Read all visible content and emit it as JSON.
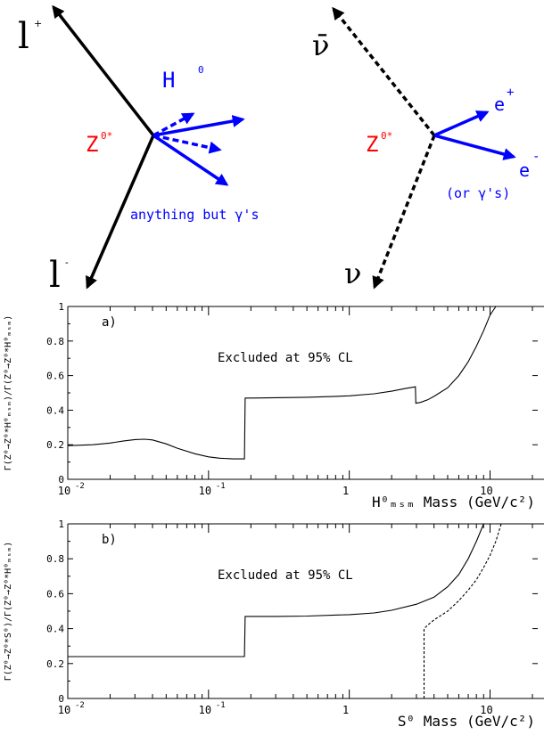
{
  "diagram_left": {
    "lepton_plus": "l",
    "lepton_plus_sup": "+",
    "lepton_minus": "l",
    "lepton_minus_sup": "-",
    "boson": "Z",
    "boson_sup": "0*",
    "higgs": "H",
    "higgs_sup": "0",
    "note": "anything but γ's",
    "color_lepton": "#000000",
    "color_boson": "#ff0000",
    "color_higgs": "#0000ff"
  },
  "diagram_right": {
    "nubar": "ν̄",
    "nu": "ν",
    "boson": "Z",
    "boson_sup": "0*",
    "e_plus": "e",
    "e_plus_sup": "+",
    "e_minus": "e",
    "e_minus_sup": "-",
    "note": "(or γ's)"
  },
  "chart_data": [
    {
      "type": "line",
      "panel_label": "a)",
      "annotation": "Excluded at 95% CL",
      "xscale": "log",
      "xlim": [
        0.01,
        20
      ],
      "ylim": [
        0,
        1
      ],
      "xticks": [
        {
          "v": 0.01,
          "base": "10",
          "exp": "-2"
        },
        {
          "v": 0.1,
          "base": "10",
          "exp": "-1"
        },
        {
          "v": 1,
          "base": "1",
          "exp": ""
        },
        {
          "v": 10,
          "base": "10",
          "exp": ""
        }
      ],
      "yticks": [
        0,
        0.2,
        0.4,
        0.6,
        0.8,
        1
      ],
      "ytick_labels": [
        "0",
        "0.2",
        "0.4",
        "0.6",
        "0.8",
        "1"
      ],
      "xlabel": "H⁰ₘₛₘ Mass (GeV/c²)",
      "ylabel": "Γ(Z⁰→Z⁰*H⁰ₘₛₘ)/Γ(Z⁰→Z⁰*H⁰ₘₛₘ)",
      "series": [
        {
          "style": "solid",
          "x": [
            0.01,
            0.015,
            0.02,
            0.025,
            0.03,
            0.035,
            0.04,
            0.05,
            0.06,
            0.08,
            0.1,
            0.12,
            0.15,
            0.18,
            0.182,
            0.2,
            0.3,
            0.5,
            0.8,
            1,
            1.5,
            2,
            2.5,
            2.95,
            2.97,
            3.2,
            3.6,
            4,
            5,
            6,
            7,
            8,
            9,
            10,
            11
          ],
          "y": [
            0.195,
            0.2,
            0.21,
            0.222,
            0.23,
            0.232,
            0.228,
            0.205,
            0.18,
            0.148,
            0.13,
            0.122,
            0.118,
            0.118,
            0.47,
            0.47,
            0.472,
            0.475,
            0.48,
            0.483,
            0.495,
            0.51,
            0.525,
            0.535,
            0.44,
            0.445,
            0.46,
            0.48,
            0.53,
            0.6,
            0.68,
            0.77,
            0.86,
            0.95,
            1.0
          ]
        }
      ]
    },
    {
      "type": "line",
      "panel_label": "b)",
      "annotation": "Excluded at 95% CL",
      "xscale": "log",
      "xlim": [
        0.01,
        20
      ],
      "ylim": [
        0,
        1
      ],
      "xticks": [
        {
          "v": 0.01,
          "base": "10",
          "exp": "-2"
        },
        {
          "v": 0.1,
          "base": "10",
          "exp": "-1"
        },
        {
          "v": 1,
          "base": "1",
          "exp": ""
        },
        {
          "v": 10,
          "base": "10",
          "exp": ""
        }
      ],
      "yticks": [
        0,
        0.2,
        0.4,
        0.6,
        0.8,
        1
      ],
      "ytick_labels": [
        "0",
        "0.2",
        "0.4",
        "0.6",
        "0.8",
        "1"
      ],
      "xlabel": "S⁰ Mass (GeV/c²)",
      "ylabel": "Γ(Z⁰→Z⁰*S⁰)/Γ(Z⁰→Z⁰*H⁰ₘₛₘ)",
      "series": [
        {
          "style": "solid",
          "x": [
            0.01,
            0.05,
            0.1,
            0.15,
            0.18,
            0.182,
            0.3,
            0.5,
            1,
            1.5,
            2,
            3,
            4,
            5,
            6,
            7,
            8,
            9
          ],
          "y": [
            0.24,
            0.24,
            0.24,
            0.24,
            0.24,
            0.47,
            0.47,
            0.472,
            0.48,
            0.49,
            0.505,
            0.54,
            0.58,
            0.64,
            0.71,
            0.8,
            0.9,
            1.0
          ]
        },
        {
          "style": "dashed",
          "x": [
            3.4,
            3.4,
            3.6,
            4,
            5,
            6,
            7,
            8,
            9,
            10,
            11,
            12
          ],
          "y": [
            0.0,
            0.4,
            0.42,
            0.45,
            0.5,
            0.56,
            0.62,
            0.68,
            0.75,
            0.82,
            0.9,
            1.0
          ]
        }
      ]
    }
  ]
}
